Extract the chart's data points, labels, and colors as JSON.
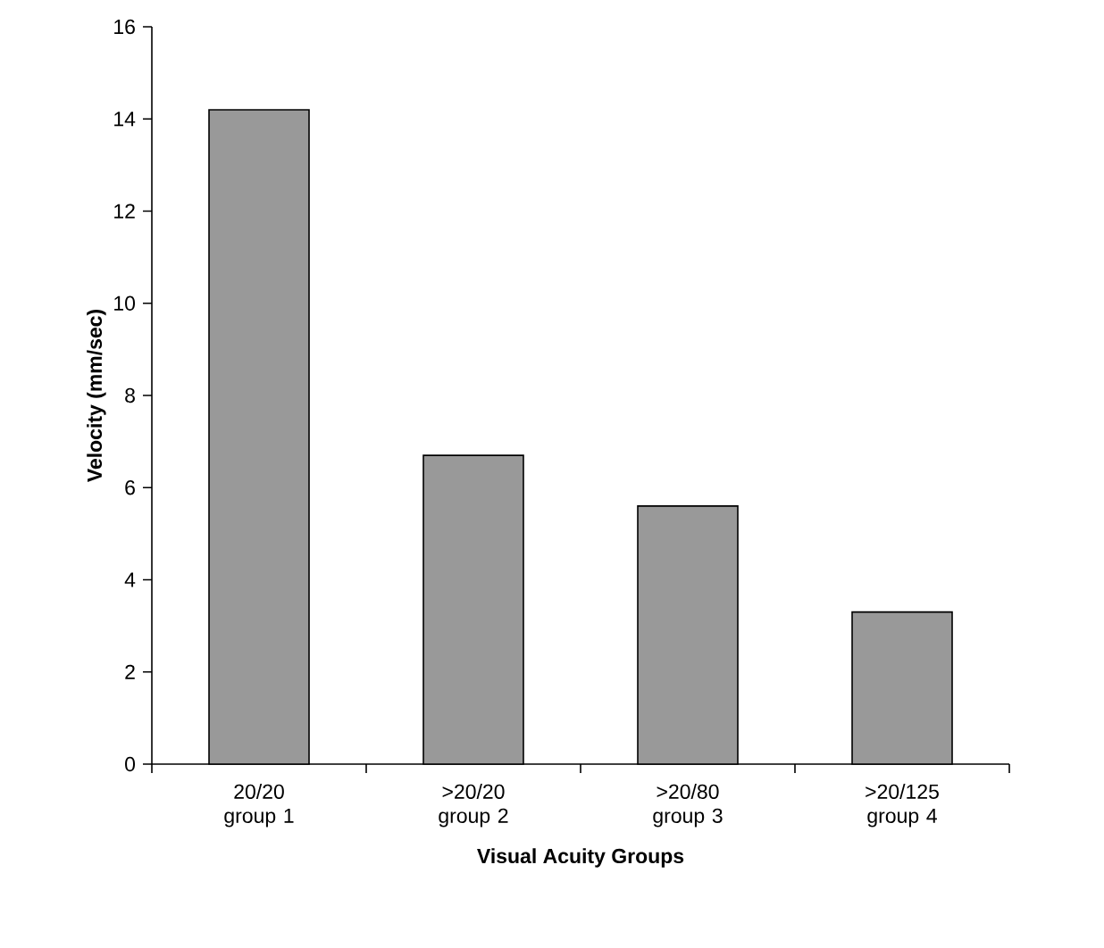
{
  "chart_data": {
    "type": "bar",
    "xlabel": "Visual Acuity Groups",
    "ylabel": "Velocity (mm/sec)",
    "categories": [
      "20/20 group 1",
      ">20/20 group 2",
      ">20/80 group 3",
      ">20/125 group 4"
    ],
    "values": [
      14.2,
      6.7,
      5.6,
      3.3
    ],
    "color": "#999999",
    "ylim": [
      0,
      16
    ],
    "yticks": [
      0,
      2,
      4,
      6,
      8,
      10,
      12,
      14,
      16
    ],
    "grid": false
  }
}
